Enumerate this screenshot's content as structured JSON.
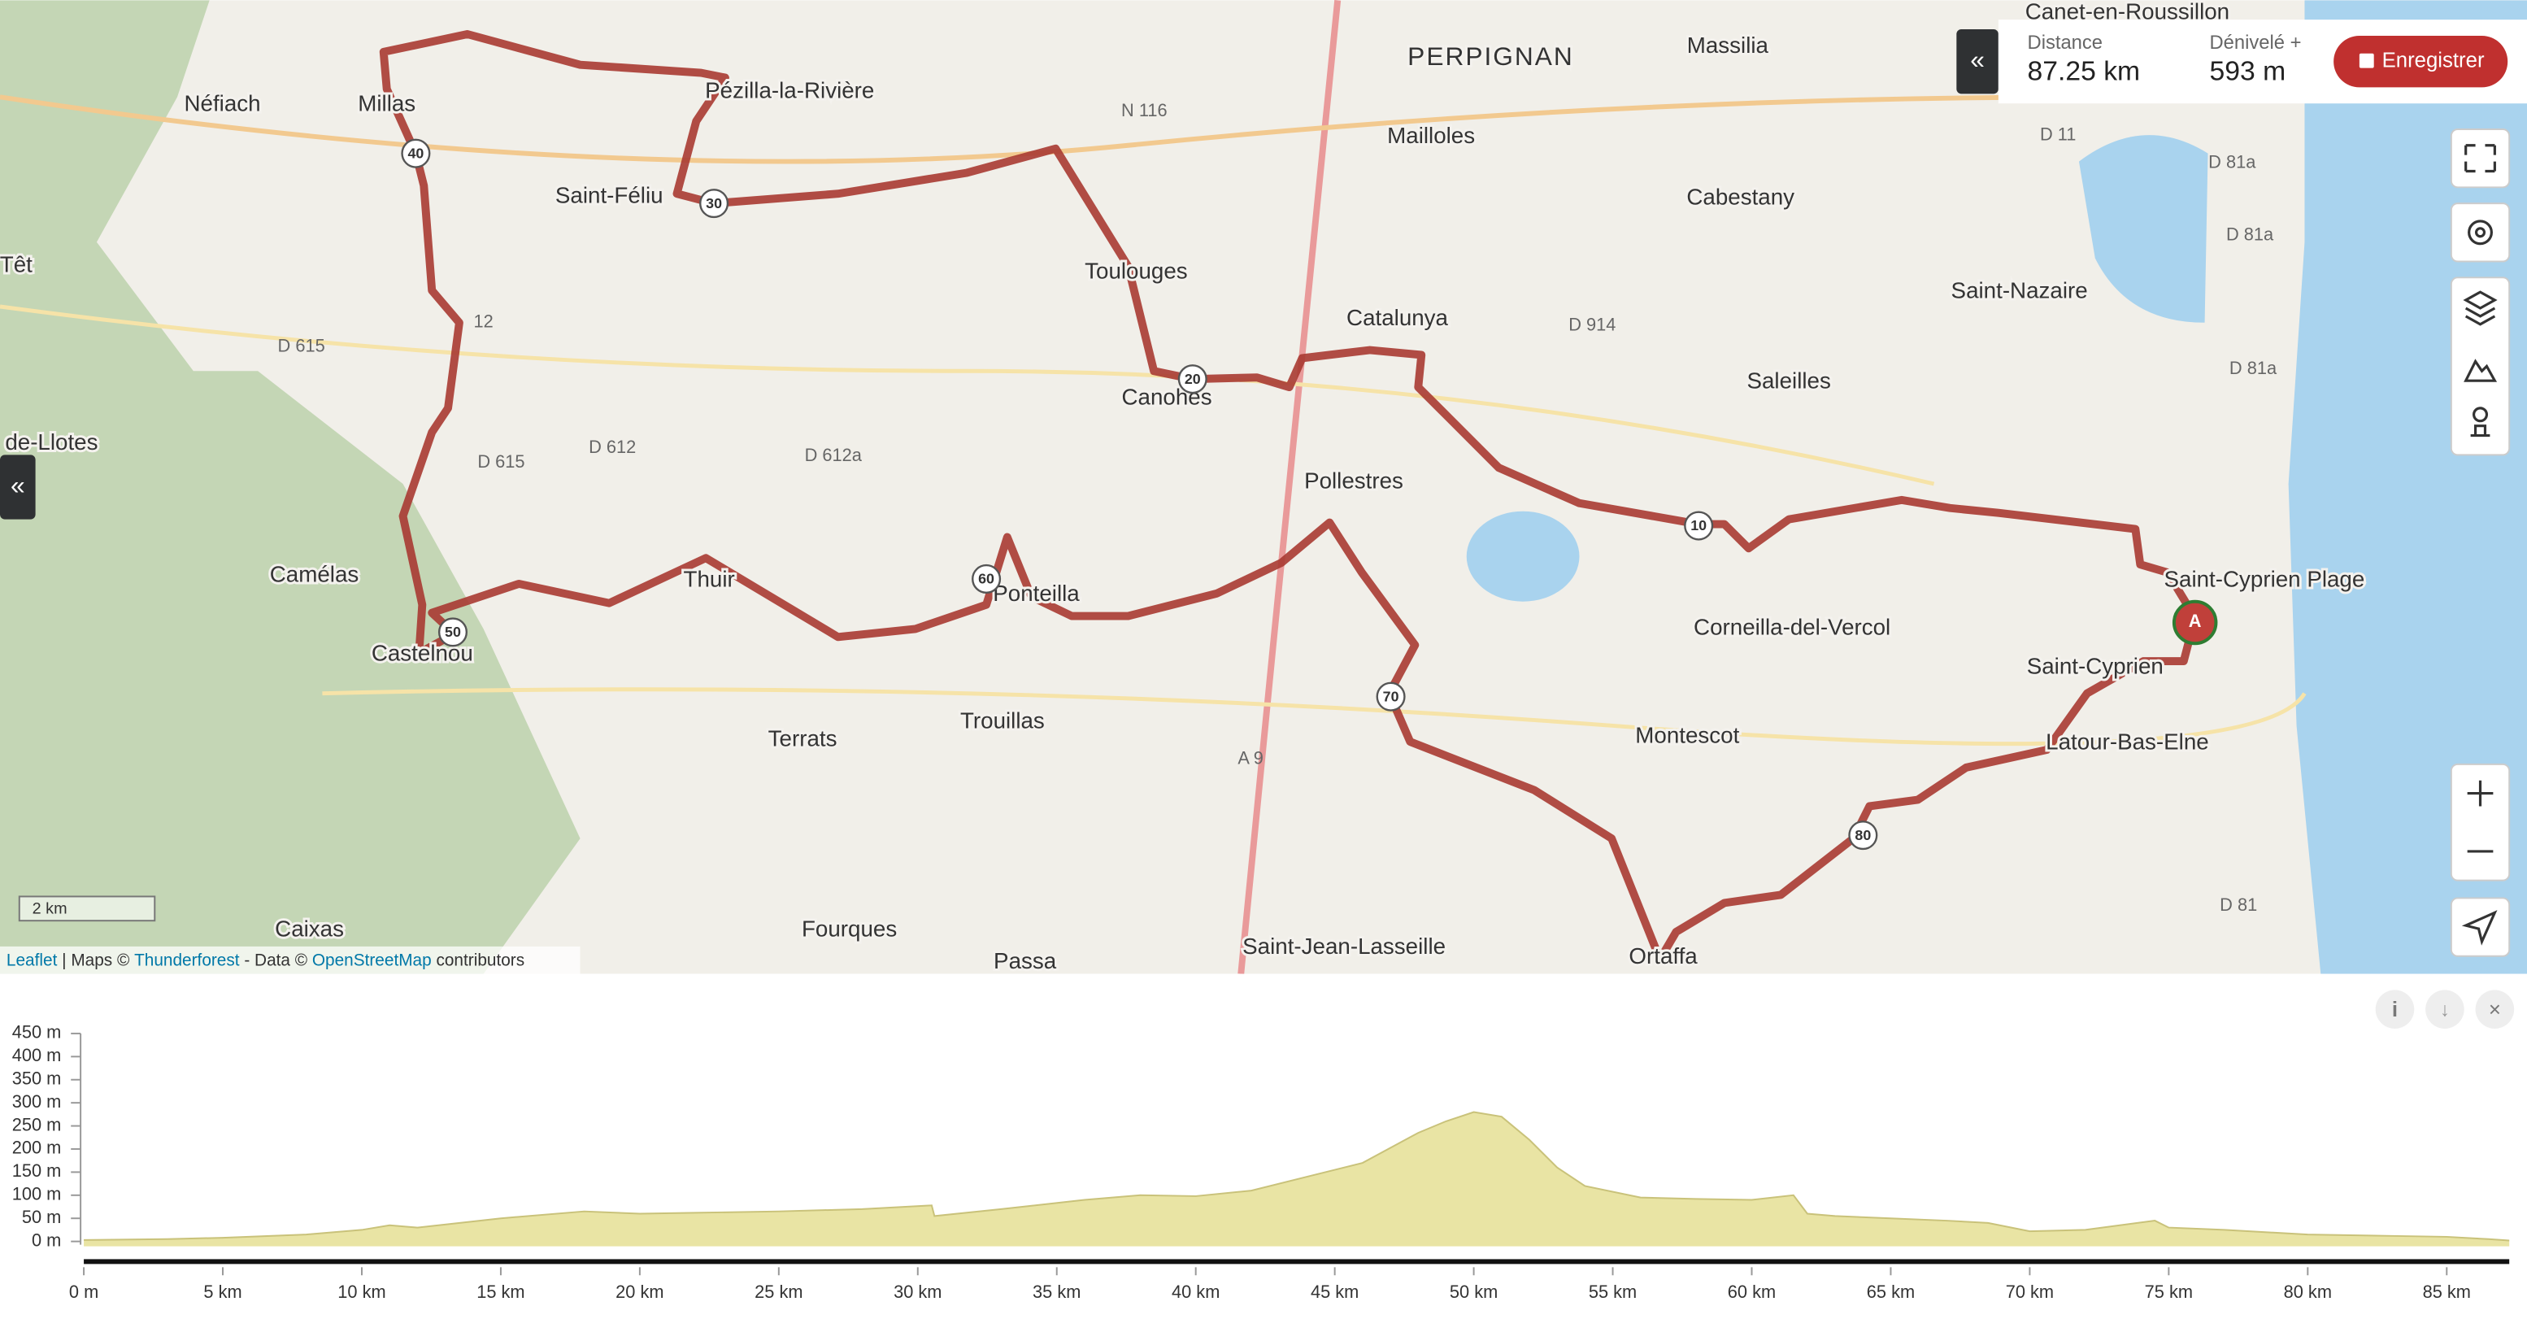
{
  "map": {
    "places": [
      "Canet-en-Roussillon",
      "PERPIGNAN",
      "Massilia",
      "Néfiach",
      "Millas",
      "Pézilla-la-Rivière",
      "Mailloles",
      "Cabestany",
      "Saint-Féliu",
      "Têt",
      "Toulouges",
      "Saint-Nazaire",
      "Catalunya",
      "Saleilles",
      "Canohes",
      "de-Llotes",
      "Pollestres",
      "Camélas",
      "Saint-Cyprien Plage",
      "Thuir",
      "Ponteilla",
      "Corneilla-del-Vercol",
      "Castelnou",
      "Saint-Cyprien",
      "Latour-Bas-Elne",
      "Terrats",
      "Trouillas",
      "Montescot",
      "Caixas",
      "Fourques",
      "Passa",
      "Saint-Jean-Lasseille",
      "Ortaffa"
    ],
    "roads": [
      "N 116",
      "D 615",
      "D 612",
      "D 615",
      "D 612a",
      "D 914",
      "A 9",
      "D 11",
      "D 81a",
      "D 81a",
      "D 81a",
      "D 81",
      "12"
    ],
    "km_markers": [
      10,
      20,
      30,
      40,
      50,
      60,
      70,
      80
    ],
    "start_marker": "A",
    "scale": "2 km",
    "attribution": [
      "Leaflet",
      " | Maps © ",
      "Thunderforest",
      " - Data © ",
      "OpenStreetMap",
      " contributors"
    ]
  },
  "stats": {
    "distance_label": "Distance",
    "distance": "87.25 km",
    "elevation_label": "Dénivelé +",
    "elevation": "593 m"
  },
  "save_button": "Enregistrer",
  "chart_data": {
    "type": "area",
    "color": "#e9e4a4",
    "x": [
      0,
      3,
      5,
      8,
      10,
      11,
      12,
      15,
      18,
      20,
      22,
      25,
      28,
      30.5,
      30.6,
      33,
      36,
      38,
      40,
      42,
      44,
      46,
      48,
      49,
      50,
      51,
      52,
      53,
      54,
      56,
      58,
      60,
      61.5,
      62,
      63,
      65,
      67,
      68.5,
      70,
      72,
      74.5,
      75,
      77,
      80,
      83,
      85,
      86.5,
      87.25
    ],
    "values": [
      3,
      5,
      8,
      15,
      25,
      35,
      30,
      50,
      65,
      60,
      62,
      65,
      70,
      78,
      55,
      70,
      90,
      100,
      98,
      110,
      140,
      170,
      235,
      260,
      280,
      270,
      220,
      160,
      120,
      95,
      92,
      90,
      100,
      60,
      55,
      50,
      45,
      40,
      22,
      25,
      45,
      30,
      25,
      15,
      12,
      10,
      5,
      2
    ],
    "xlim": [
      0,
      87.25
    ],
    "ylim": [
      0,
      450
    ],
    "xticks": [
      {
        "value": 0,
        "label": "0 m"
      },
      {
        "value": 5,
        "label": "5 km"
      },
      {
        "value": 10,
        "label": "10 km"
      },
      {
        "value": 15,
        "label": "15 km"
      },
      {
        "value": 20,
        "label": "20 km"
      },
      {
        "value": 25,
        "label": "25 km"
      },
      {
        "value": 30,
        "label": "30 km"
      },
      {
        "value": 35,
        "label": "35 km"
      },
      {
        "value": 40,
        "label": "40 km"
      },
      {
        "value": 45,
        "label": "45 km"
      },
      {
        "value": 50,
        "label": "50 km"
      },
      {
        "value": 55,
        "label": "55 km"
      },
      {
        "value": 60,
        "label": "60 km"
      },
      {
        "value": 65,
        "label": "65 km"
      },
      {
        "value": 70,
        "label": "70 km"
      },
      {
        "value": 75,
        "label": "75 km"
      },
      {
        "value": 80,
        "label": "80 km"
      },
      {
        "value": 85,
        "label": "85 km"
      }
    ],
    "yticks": [
      {
        "value": 0,
        "label": "0 m"
      },
      {
        "value": 50,
        "label": "50 m"
      },
      {
        "value": 100,
        "label": "100 m"
      },
      {
        "value": 150,
        "label": "150 m"
      },
      {
        "value": 200,
        "label": "200 m"
      },
      {
        "value": 250,
        "label": "250 m"
      },
      {
        "value": 300,
        "label": "300 m"
      },
      {
        "value": 350,
        "label": "350 m"
      },
      {
        "value": 400,
        "label": "400 m"
      },
      {
        "value": 450,
        "label": "450 m"
      }
    ]
  }
}
